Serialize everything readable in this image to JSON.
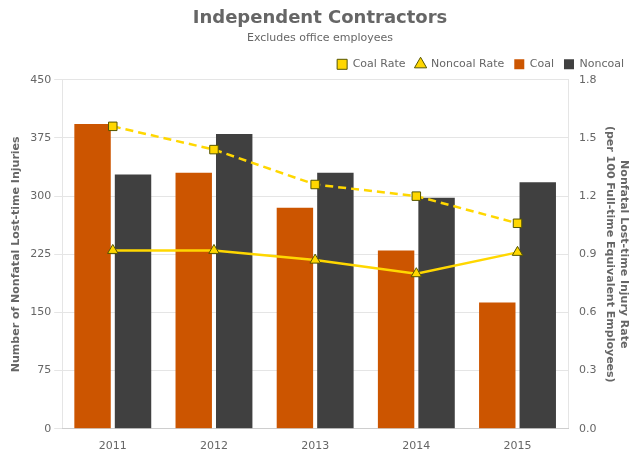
{
  "chart_data": {
    "type": "bar",
    "title": "Independent Contractors",
    "subtitle": "Excludes office employees",
    "categories": [
      "2011",
      "2012",
      "2013",
      "2014",
      "2015"
    ],
    "series": [
      {
        "name": "Coal",
        "type": "bar",
        "color": "#CC5500",
        "values": [
          393,
          330,
          285,
          230,
          163
        ]
      },
      {
        "name": "Noncoal",
        "type": "bar",
        "color": "#404040",
        "values": [
          328,
          380,
          330,
          298,
          318
        ]
      },
      {
        "name": "Coal Rate",
        "type": "line",
        "axis": "y2",
        "color": "#FFD700",
        "marker": "square",
        "line_style": "dashed",
        "values": [
          1.56,
          1.44,
          1.26,
          1.2,
          1.06
        ]
      },
      {
        "name": "Noncoal Rate",
        "type": "line",
        "axis": "y2",
        "color": "#FFD700",
        "marker": "triangle",
        "line_style": "solid",
        "values": [
          0.92,
          0.92,
          0.87,
          0.8,
          0.91
        ]
      }
    ],
    "ylabel": "Number of Nonfatal Lost-time Injuries",
    "y2label": "Nonfatal Lost-time Injury Rate\n(per 100 Full-time Equivalent Employees)",
    "ylim": [
      0,
      450
    ],
    "yticks": [
      0,
      75,
      150,
      225,
      300,
      375,
      450
    ],
    "y2lim": [
      0,
      1.8
    ],
    "y2ticks": [
      {
        "value": 0,
        "label": "0.0"
      },
      0.3,
      0.6,
      0.9,
      1.2,
      1.5,
      1.8
    ],
    "grid": true,
    "legend": "upper right"
  }
}
